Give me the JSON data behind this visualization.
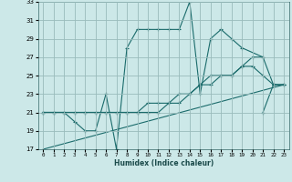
{
  "xlabel": "Humidex (Indice chaleur)",
  "ylabel": "",
  "bg_color": "#cce8e8",
  "grid_color": "#99bbbb",
  "line_color": "#1a6b6b",
  "xlim": [
    -0.5,
    23.5
  ],
  "ylim": [
    17,
    33
  ],
  "xticks": [
    0,
    1,
    2,
    3,
    4,
    5,
    6,
    7,
    8,
    9,
    10,
    11,
    12,
    13,
    14,
    15,
    16,
    17,
    18,
    19,
    20,
    21,
    22,
    23
  ],
  "yticks": [
    17,
    19,
    21,
    23,
    25,
    27,
    29,
    31,
    33
  ],
  "series1_x": [
    0,
    1,
    2,
    3,
    4,
    5,
    6,
    7,
    8,
    9,
    10,
    11,
    12,
    13,
    14,
    15,
    16,
    17,
    18,
    19,
    21
  ],
  "series1_y": [
    21,
    21,
    21,
    20,
    19,
    19,
    23,
    17,
    28,
    30,
    30,
    30,
    30,
    30,
    33,
    23,
    29,
    30,
    29,
    28,
    27
  ],
  "series2_x": [
    0,
    1,
    2,
    3,
    4,
    5,
    6,
    7,
    8,
    9,
    10,
    11,
    12,
    13,
    14,
    15,
    16,
    17,
    18,
    19,
    20,
    21,
    22,
    23
  ],
  "series2_y": [
    21,
    21,
    21,
    21,
    21,
    21,
    21,
    21,
    21,
    21,
    22,
    22,
    22,
    23,
    23,
    24,
    24,
    25,
    25,
    26,
    27,
    27,
    24,
    24
  ],
  "series3_x": [
    0,
    1,
    2,
    3,
    4,
    5,
    6,
    7,
    8,
    9,
    10,
    11,
    12,
    13,
    14,
    15,
    16,
    17,
    18,
    19,
    20,
    21,
    22,
    23
  ],
  "series3_y": [
    21,
    21,
    21,
    21,
    21,
    21,
    21,
    21,
    21,
    21,
    21,
    21,
    22,
    22,
    23,
    24,
    25,
    25,
    25,
    26,
    26,
    25,
    24,
    24
  ],
  "series4_x": [
    0,
    23
  ],
  "series4_y": [
    17,
    24
  ],
  "series5_x": [
    21,
    22,
    23
  ],
  "series5_y": [
    21,
    24,
    24
  ]
}
